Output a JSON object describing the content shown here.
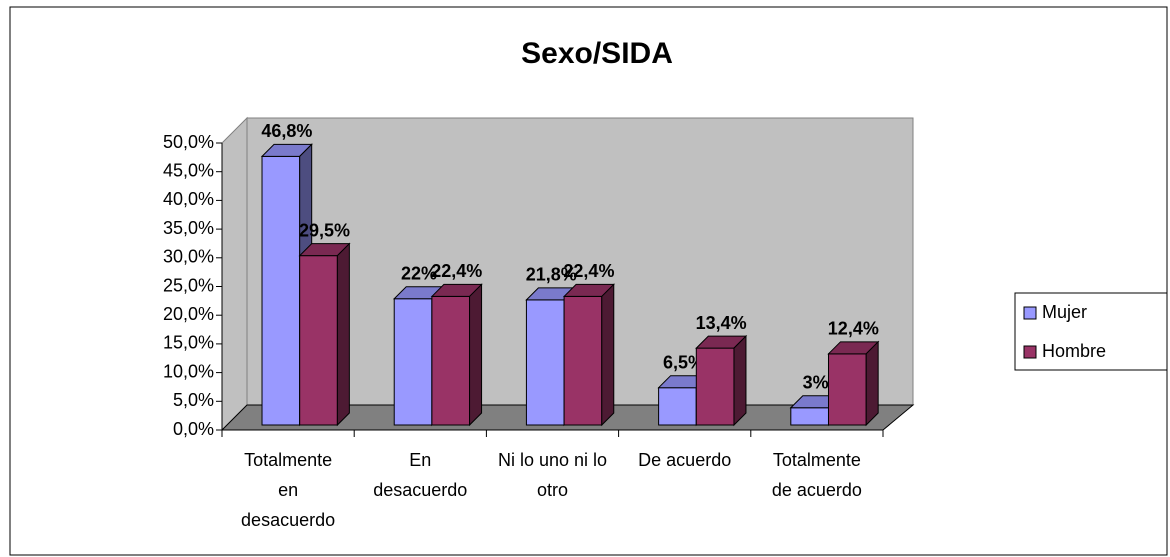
{
  "chart_data": {
    "type": "bar3d",
    "title": "Sexo/SIDA",
    "categories": [
      "Totalmente en desacuerdo",
      "En desacuerdo",
      "Ni lo uno ni lo otro",
      "De acuerdo",
      "Totalmente de acuerdo"
    ],
    "series": [
      {
        "name": "Mujer",
        "color": "#9999ff",
        "values": [
          46.8,
          22,
          21.8,
          6.5,
          3
        ],
        "value_labels": [
          "46,8%",
          "22%",
          "21,8%",
          "6,5%",
          "3%"
        ]
      },
      {
        "name": "Hombre",
        "color": "#993366",
        "values": [
          29.5,
          22.4,
          22.4,
          13.4,
          12.4
        ],
        "value_labels": [
          "29,5%",
          "22,4%",
          "22,4%",
          "13,4%",
          "12,4%"
        ]
      }
    ],
    "ylim": [
      0,
      50
    ],
    "yticks": [
      {
        "value": 0,
        "label": "0,0%"
      },
      {
        "value": 5,
        "label": "5,0%"
      },
      {
        "value": 10,
        "label": "10,0%"
      },
      {
        "value": 15,
        "label": "15,0%"
      },
      {
        "value": 20,
        "label": "20,0%"
      },
      {
        "value": 25,
        "label": "25,0%"
      },
      {
        "value": 30,
        "label": "30,0%"
      },
      {
        "value": 35,
        "label": "35,0%"
      },
      {
        "value": 40,
        "label": "40,0%"
      },
      {
        "value": 45,
        "label": "45,0%"
      },
      {
        "value": 50,
        "label": "50,0%"
      }
    ],
    "legend": "right"
  }
}
